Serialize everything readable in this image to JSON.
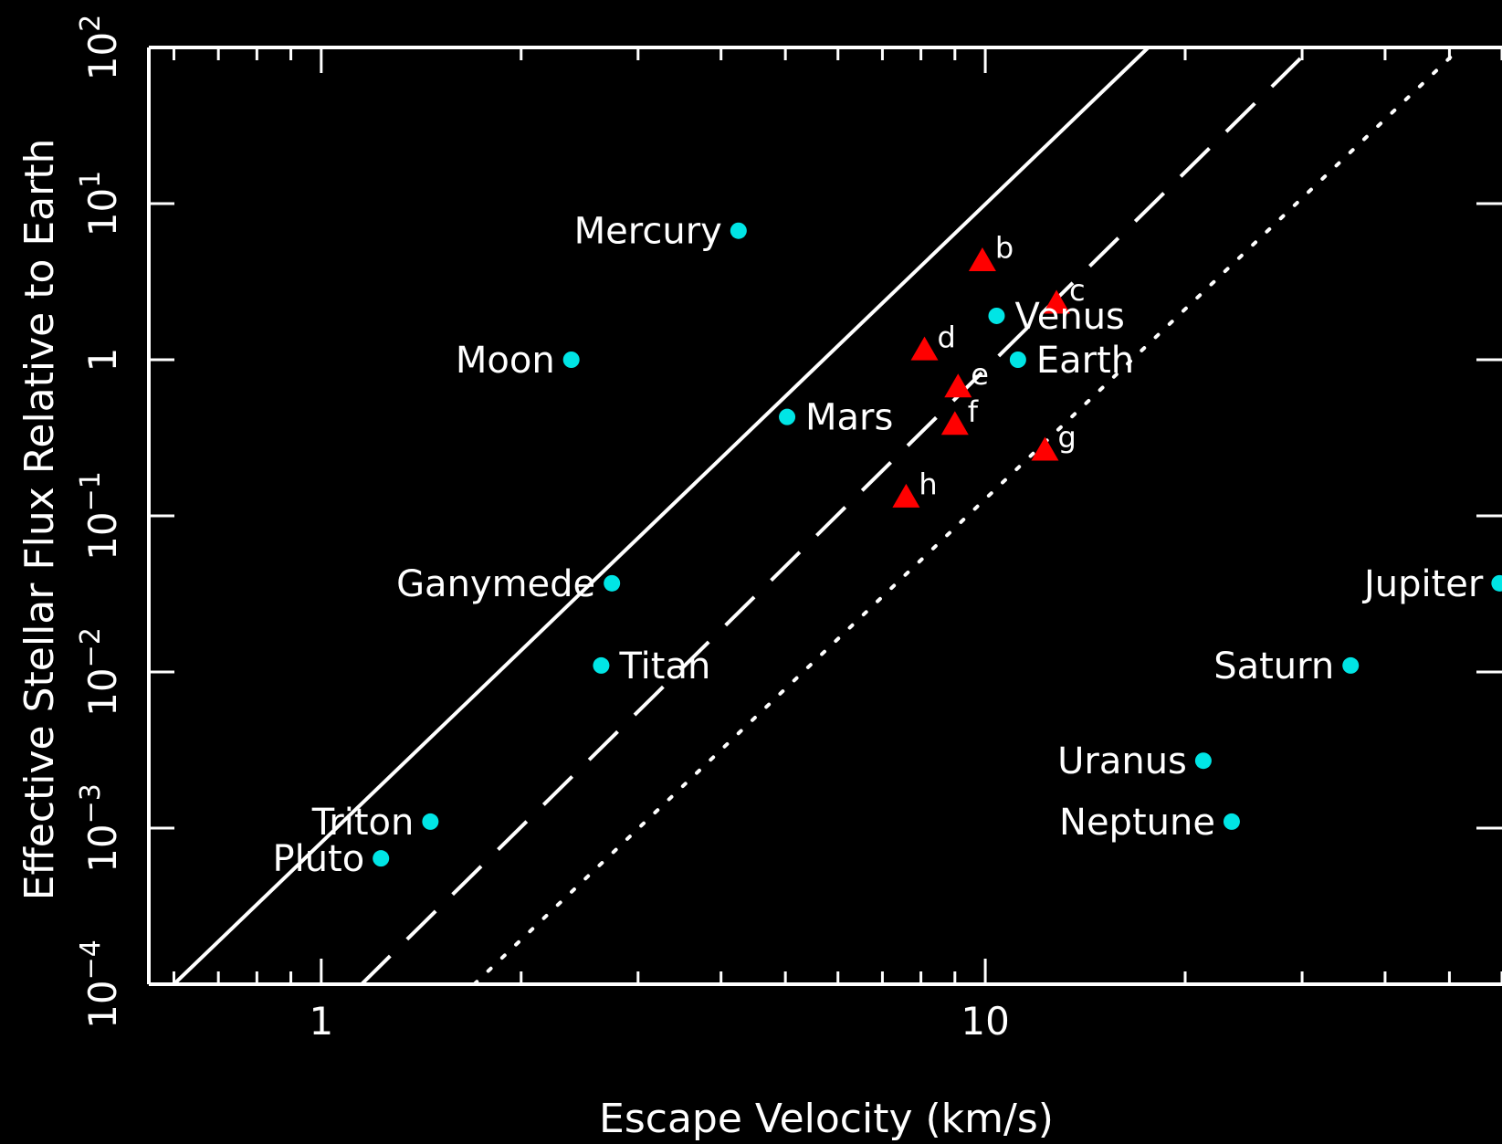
{
  "chart_data": {
    "type": "scatter",
    "title": "",
    "xlabel": "Escape Velocity (km/s)",
    "ylabel": "Effective Stellar Flux Relative to Earth",
    "xscale": "log",
    "yscale": "log",
    "xlim": [
      0.55,
      60
    ],
    "ylim": [
      0.0001,
      100
    ],
    "xticks": [
      {
        "value": 1,
        "label": "1"
      },
      {
        "value": 10,
        "label": "10"
      }
    ],
    "yticks": [
      {
        "value": 0.0001,
        "base": "10",
        "exp": "−4"
      },
      {
        "value": 0.001,
        "base": "10",
        "exp": "−3"
      },
      {
        "value": 0.01,
        "base": "10",
        "exp": "−2"
      },
      {
        "value": 0.1,
        "base": "10",
        "exp": "−1"
      },
      {
        "value": 1,
        "base": "1",
        "exp": ""
      },
      {
        "value": 10,
        "base": "10",
        "exp": "1"
      },
      {
        "value": 100,
        "base": "10",
        "exp": "2"
      }
    ],
    "grid": false,
    "background": "#000000",
    "foreground": "#ffffff",
    "series": [
      {
        "marker": "circle",
        "color": "#00e5e5",
        "points": [
          {
            "label": "Mercury",
            "x": 4.25,
            "y": 6.7
          },
          {
            "label": "Venus",
            "x": 10.4,
            "y": 1.91
          },
          {
            "label": "Earth",
            "x": 11.2,
            "y": 1.0
          },
          {
            "label": "Moon",
            "x": 2.38,
            "y": 1.0
          },
          {
            "label": "Mars",
            "x": 5.03,
            "y": 0.43
          },
          {
            "label": "Ganymede",
            "x": 2.74,
            "y": 0.037
          },
          {
            "label": "Titan",
            "x": 2.64,
            "y": 0.011
          },
          {
            "label": "Jupiter",
            "x": 59.5,
            "y": 0.037
          },
          {
            "label": "Saturn",
            "x": 35.5,
            "y": 0.011
          },
          {
            "label": "Uranus",
            "x": 21.3,
            "y": 0.0027
          },
          {
            "label": "Neptune",
            "x": 23.5,
            "y": 0.0011
          },
          {
            "label": "Triton",
            "x": 1.46,
            "y": 0.0011
          },
          {
            "label": "Pluto",
            "x": 1.23,
            "y": 0.00064
          }
        ]
      },
      {
        "marker": "triangle",
        "color": "#ff0000",
        "points": [
          {
            "label": "b",
            "x": 9.9,
            "y": 4.25
          },
          {
            "label": "c",
            "x": 12.8,
            "y": 2.27
          },
          {
            "label": "d",
            "x": 8.1,
            "y": 1.14
          },
          {
            "label": "e",
            "x": 9.1,
            "y": 0.66
          },
          {
            "label": "f",
            "x": 9.0,
            "y": 0.38
          },
          {
            "label": "g",
            "x": 12.3,
            "y": 0.26
          },
          {
            "label": "h",
            "x": 7.6,
            "y": 0.13
          }
        ]
      }
    ],
    "lines": [
      {
        "style": "solid",
        "x": [
          0.6,
          17.6
        ],
        "y": [
          0.0001,
          100
        ]
      },
      {
        "style": "dashed",
        "x": [
          1.15,
          31.0
        ],
        "y": [
          0.0001,
          100
        ]
      },
      {
        "style": "dotted",
        "x": [
          1.7,
          52.0
        ],
        "y": [
          0.0001,
          100
        ]
      }
    ]
  }
}
